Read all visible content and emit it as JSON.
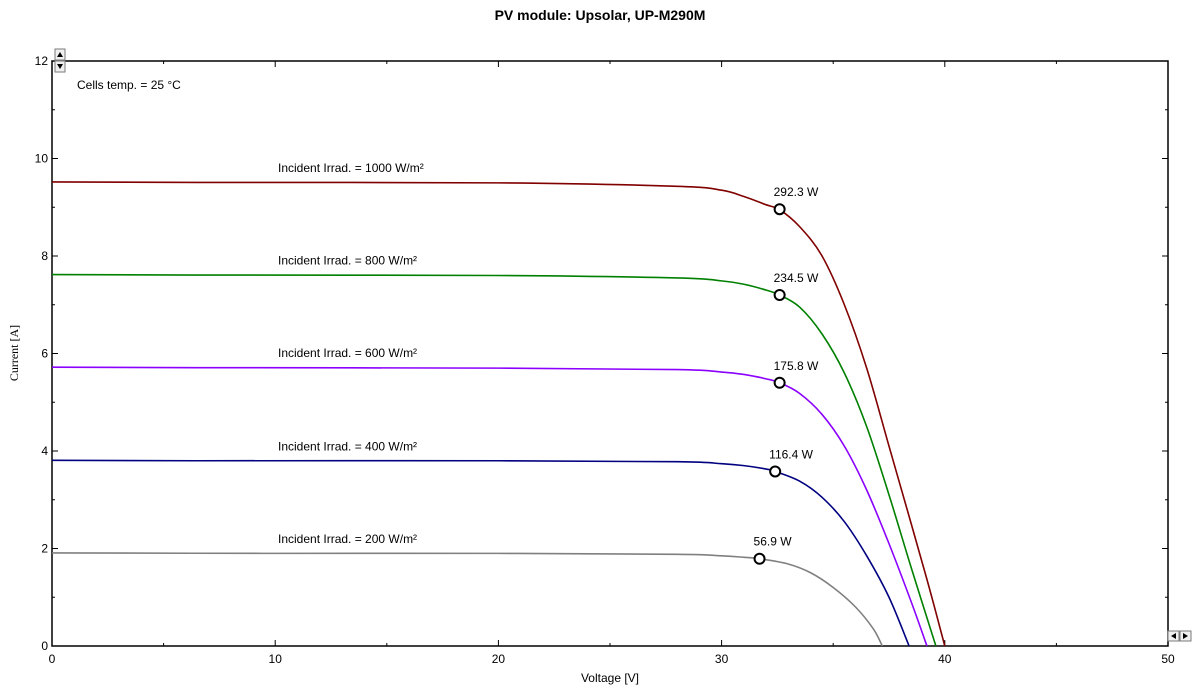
{
  "chart_data": {
    "type": "line",
    "title": "PV module:  Upsolar,  UP-M290M",
    "xlabel": "Voltage [V]",
    "ylabel": "Current [A]",
    "xlim": [
      0,
      50
    ],
    "ylim": [
      0,
      12
    ],
    "xticks": [
      0,
      10,
      20,
      30,
      40,
      50
    ],
    "yticks": [
      0,
      2,
      4,
      6,
      8,
      10,
      12
    ],
    "grid": false,
    "note": "Cells temp. = 25 °C",
    "series": [
      {
        "name": "Incident Irrad. = 1000 W/m²",
        "color": "#800000",
        "points": [
          [
            0,
            9.52
          ],
          [
            6.5,
            9.51
          ],
          [
            20,
            9.5
          ],
          [
            28,
            9.43
          ],
          [
            30,
            9.35
          ],
          [
            31,
            9.22
          ],
          [
            32,
            9.05
          ],
          [
            32.6,
            8.95
          ],
          [
            33.5,
            8.6
          ],
          [
            34.5,
            8.0
          ],
          [
            35.5,
            7.0
          ],
          [
            36.5,
            5.7
          ],
          [
            37.5,
            4.1
          ],
          [
            38.5,
            2.5
          ],
          [
            39.3,
            1.2
          ],
          [
            40.0,
            0
          ]
        ],
        "mpp": {
          "x": 32.6,
          "y": 8.96,
          "label": "292.3 W"
        }
      },
      {
        "name": "Incident Irrad. = 800 W/m²",
        "color": "#008000",
        "points": [
          [
            0,
            7.62
          ],
          [
            6.5,
            7.61
          ],
          [
            20,
            7.6
          ],
          [
            28,
            7.55
          ],
          [
            30,
            7.49
          ],
          [
            31,
            7.42
          ],
          [
            32,
            7.3
          ],
          [
            32.6,
            7.2
          ],
          [
            33.5,
            6.95
          ],
          [
            34.5,
            6.4
          ],
          [
            35.5,
            5.6
          ],
          [
            36.5,
            4.5
          ],
          [
            37.5,
            3.1
          ],
          [
            38.5,
            1.6
          ],
          [
            39.6,
            0
          ]
        ],
        "mpp": {
          "x": 32.6,
          "y": 7.2,
          "label": "234.5 W"
        }
      },
      {
        "name": "Incident Irrad. = 600 W/m²",
        "color": "#8B00FF",
        "points": [
          [
            0,
            5.72
          ],
          [
            6.5,
            5.71
          ],
          [
            20,
            5.7
          ],
          [
            28,
            5.67
          ],
          [
            30,
            5.62
          ],
          [
            31,
            5.57
          ],
          [
            32,
            5.48
          ],
          [
            32.6,
            5.4
          ],
          [
            33.5,
            5.18
          ],
          [
            34.5,
            4.75
          ],
          [
            35.5,
            4.1
          ],
          [
            36.5,
            3.2
          ],
          [
            37.5,
            2.1
          ],
          [
            38.5,
            0.9
          ],
          [
            39.2,
            0
          ]
        ],
        "mpp": {
          "x": 32.6,
          "y": 5.4,
          "label": "175.8 W"
        }
      },
      {
        "name": "Incident Irrad. = 400 W/m²",
        "color": "#000080",
        "points": [
          [
            0,
            3.81
          ],
          [
            6.5,
            3.8
          ],
          [
            20,
            3.8
          ],
          [
            28,
            3.78
          ],
          [
            30,
            3.74
          ],
          [
            31,
            3.7
          ],
          [
            32,
            3.63
          ],
          [
            32.4,
            3.58
          ],
          [
            33.5,
            3.38
          ],
          [
            34.5,
            3.05
          ],
          [
            35.5,
            2.55
          ],
          [
            36.5,
            1.85
          ],
          [
            37.5,
            1.0
          ],
          [
            38.4,
            0
          ]
        ],
        "mpp": {
          "x": 32.4,
          "y": 3.58,
          "label": "116.4 W"
        }
      },
      {
        "name": "Incident Irrad. = 200 W/m²",
        "color": "#808080",
        "points": [
          [
            0,
            1.91
          ],
          [
            9.5,
            1.9
          ],
          [
            20,
            1.9
          ],
          [
            28,
            1.88
          ],
          [
            30,
            1.85
          ],
          [
            31,
            1.82
          ],
          [
            31.7,
            1.79
          ],
          [
            33,
            1.68
          ],
          [
            34,
            1.5
          ],
          [
            35,
            1.2
          ],
          [
            36,
            0.8
          ],
          [
            36.8,
            0.35
          ],
          [
            37.2,
            0
          ]
        ],
        "mpp": {
          "x": 31.7,
          "y": 1.79,
          "label": "56.9 W"
        }
      }
    ]
  }
}
